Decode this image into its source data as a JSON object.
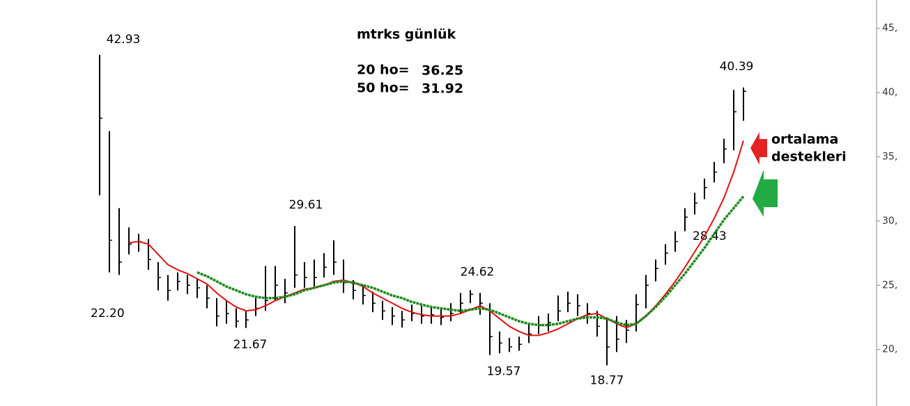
{
  "chart_data": {
    "type": "ohlc",
    "title": "mtrks günlük",
    "high": [
      42.93,
      37,
      31,
      29.5,
      29,
      28.6,
      26.8,
      25.8,
      26,
      25.8,
      25.5,
      25,
      24,
      23.8,
      23.2,
      23,
      24,
      26.5,
      26.5,
      25.5,
      29.61,
      26.8,
      27,
      27.5,
      28.5,
      27,
      25.4,
      25,
      24.5,
      23.8,
      23.3,
      23,
      23.5,
      23.4,
      23.4,
      23.2,
      23.6,
      24.4,
      24.62,
      24.4,
      23.6,
      21.4,
      20.9,
      21,
      22,
      22.6,
      22.8,
      24.2,
      24.5,
      24.3,
      23.6,
      23,
      22.5,
      22.6,
      22.3,
      24.3,
      25.8,
      27,
      28.2,
      29.2,
      31,
      32.2,
      33.3,
      34.6,
      36.4,
      40.2,
      40.39
    ],
    "low": [
      32,
      26,
      25.8,
      27.4,
      27.6,
      26.2,
      24.6,
      23.8,
      24.6,
      24.3,
      24,
      23.2,
      21.8,
      22,
      21.7,
      21.67,
      22.6,
      23,
      23.8,
      23.6,
      24.8,
      24.8,
      24.9,
      25.6,
      25.8,
      24.4,
      23.9,
      23.5,
      22.9,
      22.3,
      21.9,
      21.7,
      22.2,
      22,
      22,
      21.9,
      22.2,
      22.8,
      23.6,
      22.7,
      19.57,
      19.7,
      19.8,
      19.9,
      20.5,
      21.2,
      21.4,
      22.2,
      22.9,
      22.6,
      22,
      21,
      18.77,
      19.8,
      20.5,
      21.4,
      23.2,
      25.3,
      26.6,
      27.6,
      29.2,
      30.5,
      31.7,
      33,
      34.5,
      35.5,
      37.8
    ],
    "close": [
      38,
      28.5,
      26.8,
      28.2,
      28.4,
      27,
      25.6,
      24.6,
      25.3,
      25,
      24.8,
      24,
      22.6,
      22.8,
      22.2,
      22.3,
      23.2,
      23.8,
      25,
      24.4,
      25.8,
      25.6,
      25.6,
      26.4,
      26.8,
      25.2,
      24.6,
      24.2,
      23.6,
      23,
      22.6,
      22.3,
      22.8,
      22.6,
      22.7,
      22.5,
      22.8,
      23.6,
      24.3,
      23.6,
      21,
      20.5,
      20.2,
      20.4,
      21.2,
      21.9,
      22.1,
      23,
      23.6,
      23.4,
      22.8,
      21.8,
      20.2,
      20.8,
      21.5,
      23.5,
      25,
      26.3,
      27.5,
      28.4,
      30.3,
      31.4,
      32.6,
      33.8,
      35.6,
      38.5,
      40.1
    ],
    "bar_color": "#000000",
    "series": [
      {
        "name": "20 ho=",
        "color": "#e01010",
        "values": [
          null,
          null,
          null,
          28.3,
          28.4,
          28.2,
          27.4,
          26.6,
          26.2,
          25.9,
          25.5,
          25.1,
          24.4,
          23.8,
          23.3,
          23.0,
          23.1,
          23.4,
          23.8,
          24.1,
          24.4,
          24.7,
          24.8,
          25.0,
          25.3,
          25.4,
          25.2,
          24.9,
          24.4,
          24.0,
          23.6,
          23.2,
          22.9,
          22.7,
          22.6,
          22.6,
          22.6,
          22.8,
          23.1,
          23.4,
          23.0,
          22.4,
          21.8,
          21.4,
          21.1,
          21.1,
          21.3,
          21.6,
          22.0,
          22.4,
          22.7,
          22.8,
          22.4,
          22.0,
          21.7,
          22.0,
          22.6,
          23.4,
          24.3,
          25.3,
          26.4,
          27.6,
          28.8,
          30.2,
          31.8,
          33.8,
          36.25
        ]
      },
      {
        "name": "50 ho=",
        "color": "#1a8a1a",
        "values": [
          null,
          null,
          null,
          null,
          null,
          null,
          null,
          null,
          null,
          null,
          26.0,
          25.7,
          25.3,
          24.9,
          24.6,
          24.3,
          24.1,
          24.0,
          24.0,
          24.1,
          24.3,
          24.6,
          24.8,
          25.0,
          25.2,
          25.3,
          25.2,
          25.0,
          24.8,
          24.5,
          24.2,
          24.0,
          23.7,
          23.5,
          23.3,
          23.2,
          23.1,
          23.0,
          23.1,
          23.2,
          23.1,
          22.8,
          22.5,
          22.2,
          22.0,
          21.9,
          21.9,
          22.0,
          22.2,
          22.4,
          22.5,
          22.5,
          22.4,
          22.1,
          21.9,
          22.0,
          22.6,
          23.3,
          24.1,
          25.0,
          25.9,
          26.9,
          27.9,
          29.0,
          30.1,
          31.0,
          31.92
        ]
      }
    ],
    "ylim": [
      15.6,
      47.2
    ],
    "yticks": [
      {
        "value": 20,
        "label": "20,"
      },
      {
        "value": 25,
        "label": "25,"
      },
      {
        "value": 30,
        "label": "30,"
      },
      {
        "value": 35,
        "label": "35,"
      },
      {
        "value": 40,
        "label": "40,"
      },
      {
        "value": 45,
        "label": "45,"
      }
    ],
    "annotations": [
      "22.20",
      "28.43",
      "ortalama",
      "destekleri"
    ]
  }
}
